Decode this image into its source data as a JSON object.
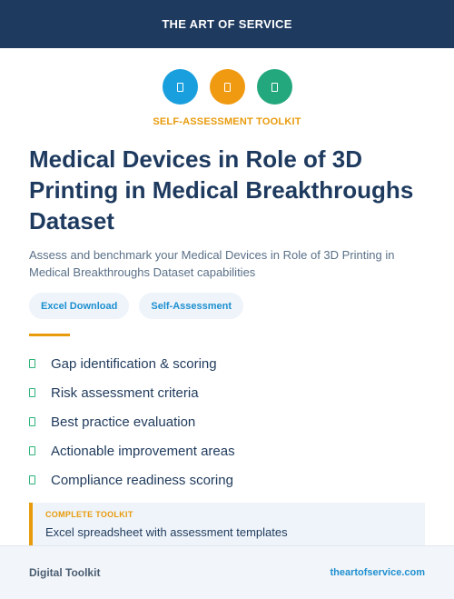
{
  "header": {
    "brand": "THE ART OF SERVICE"
  },
  "icons": [
    {
      "name": "document-icon",
      "color": "#1a9fde"
    },
    {
      "name": "document-icon",
      "color": "#f09a12"
    },
    {
      "name": "document-icon",
      "color": "#23a77d"
    }
  ],
  "kicker": "SELF-ASSESSMENT TOOLKIT",
  "title": "Medical Devices in Role of 3D Printing in Medical Breakthroughs Dataset",
  "subtitle": "Assess and benchmark your Medical Devices in Role of 3D Printing in Medical Breakthroughs Dataset capabilities",
  "tags": [
    "Excel Download",
    "Self-Assessment"
  ],
  "features": [
    "Gap identification & scoring",
    "Risk assessment criteria",
    "Best practice evaluation",
    "Actionable improvement areas",
    "Compliance readiness scoring"
  ],
  "callout": {
    "label": "COMPLETE TOOLKIT",
    "text": "Excel spreadsheet with assessment templates"
  },
  "footer": {
    "left": "Digital Toolkit",
    "right": "theartofservice.com"
  }
}
